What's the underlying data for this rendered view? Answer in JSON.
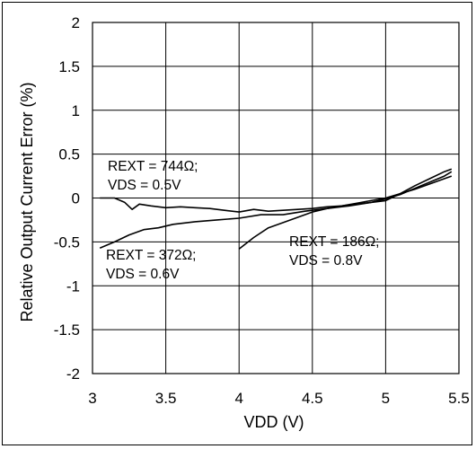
{
  "chart_data": {
    "type": "line",
    "title": "",
    "xlabel": "VDD (V)",
    "ylabel": "Relative Output Current Error (%)",
    "xlim": [
      3,
      5.5
    ],
    "ylim": [
      -2,
      2
    ],
    "x_ticks": [
      "3",
      "3.5",
      "4",
      "4.5",
      "5",
      "5.5"
    ],
    "y_ticks": [
      "2",
      "1.5",
      "1",
      "0.5",
      "0",
      "-0.5",
      "-1",
      "-1.5",
      "-2"
    ],
    "x_tick_values": [
      3,
      3.5,
      4,
      4.5,
      5,
      5.5
    ],
    "y_tick_values": [
      2,
      1.5,
      1,
      0.5,
      0,
      -0.5,
      -1,
      -1.5,
      -2
    ],
    "grid": true,
    "legend": "none",
    "line_color": "#000000",
    "series": [
      {
        "annotation": [
          "REXT = 744Ω;",
          "VDS = 0.5V"
        ],
        "x": [
          3.05,
          3.15,
          3.22,
          3.27,
          3.32,
          3.4,
          3.5,
          3.6,
          3.7,
          3.8,
          3.9,
          4.0,
          4.1,
          4.2,
          4.3,
          4.4,
          4.5,
          4.6,
          4.7,
          4.8,
          4.9,
          5.0,
          5.1,
          5.2,
          5.3,
          5.4,
          5.45
        ],
        "y": [
          0.0,
          0.0,
          -0.05,
          -0.13,
          -0.07,
          -0.09,
          -0.11,
          -0.1,
          -0.11,
          -0.12,
          -0.14,
          -0.16,
          -0.13,
          -0.15,
          -0.14,
          -0.13,
          -0.12,
          -0.1,
          -0.09,
          -0.06,
          -0.03,
          0.0,
          0.05,
          0.1,
          0.16,
          0.22,
          0.25
        ]
      },
      {
        "annotation": [
          "REXT = 372Ω;",
          "VDS = 0.6V"
        ],
        "x": [
          3.05,
          3.15,
          3.25,
          3.35,
          3.45,
          3.55,
          3.7,
          3.85,
          4.0,
          4.15,
          4.3,
          4.45,
          4.6,
          4.75,
          4.9,
          5.0,
          5.1,
          5.2,
          5.3,
          5.4,
          5.45
        ],
        "y": [
          -0.57,
          -0.5,
          -0.42,
          -0.36,
          -0.34,
          -0.3,
          -0.27,
          -0.25,
          -0.23,
          -0.19,
          -0.19,
          -0.15,
          -0.12,
          -0.09,
          -0.05,
          -0.01,
          0.04,
          0.11,
          0.18,
          0.25,
          0.3
        ]
      },
      {
        "annotation": [
          "REXT = 186Ω;",
          "VDS = 0.8V"
        ],
        "x": [
          4.0,
          4.1,
          4.2,
          4.3,
          4.4,
          4.5,
          4.6,
          4.7,
          4.8,
          4.9,
          5.0,
          5.1,
          5.2,
          5.3,
          5.4,
          5.45
        ],
        "y": [
          -0.58,
          -0.45,
          -0.34,
          -0.28,
          -0.22,
          -0.16,
          -0.12,
          -0.09,
          -0.07,
          -0.05,
          -0.03,
          0.05,
          0.14,
          0.22,
          0.3,
          0.33
        ]
      }
    ]
  }
}
